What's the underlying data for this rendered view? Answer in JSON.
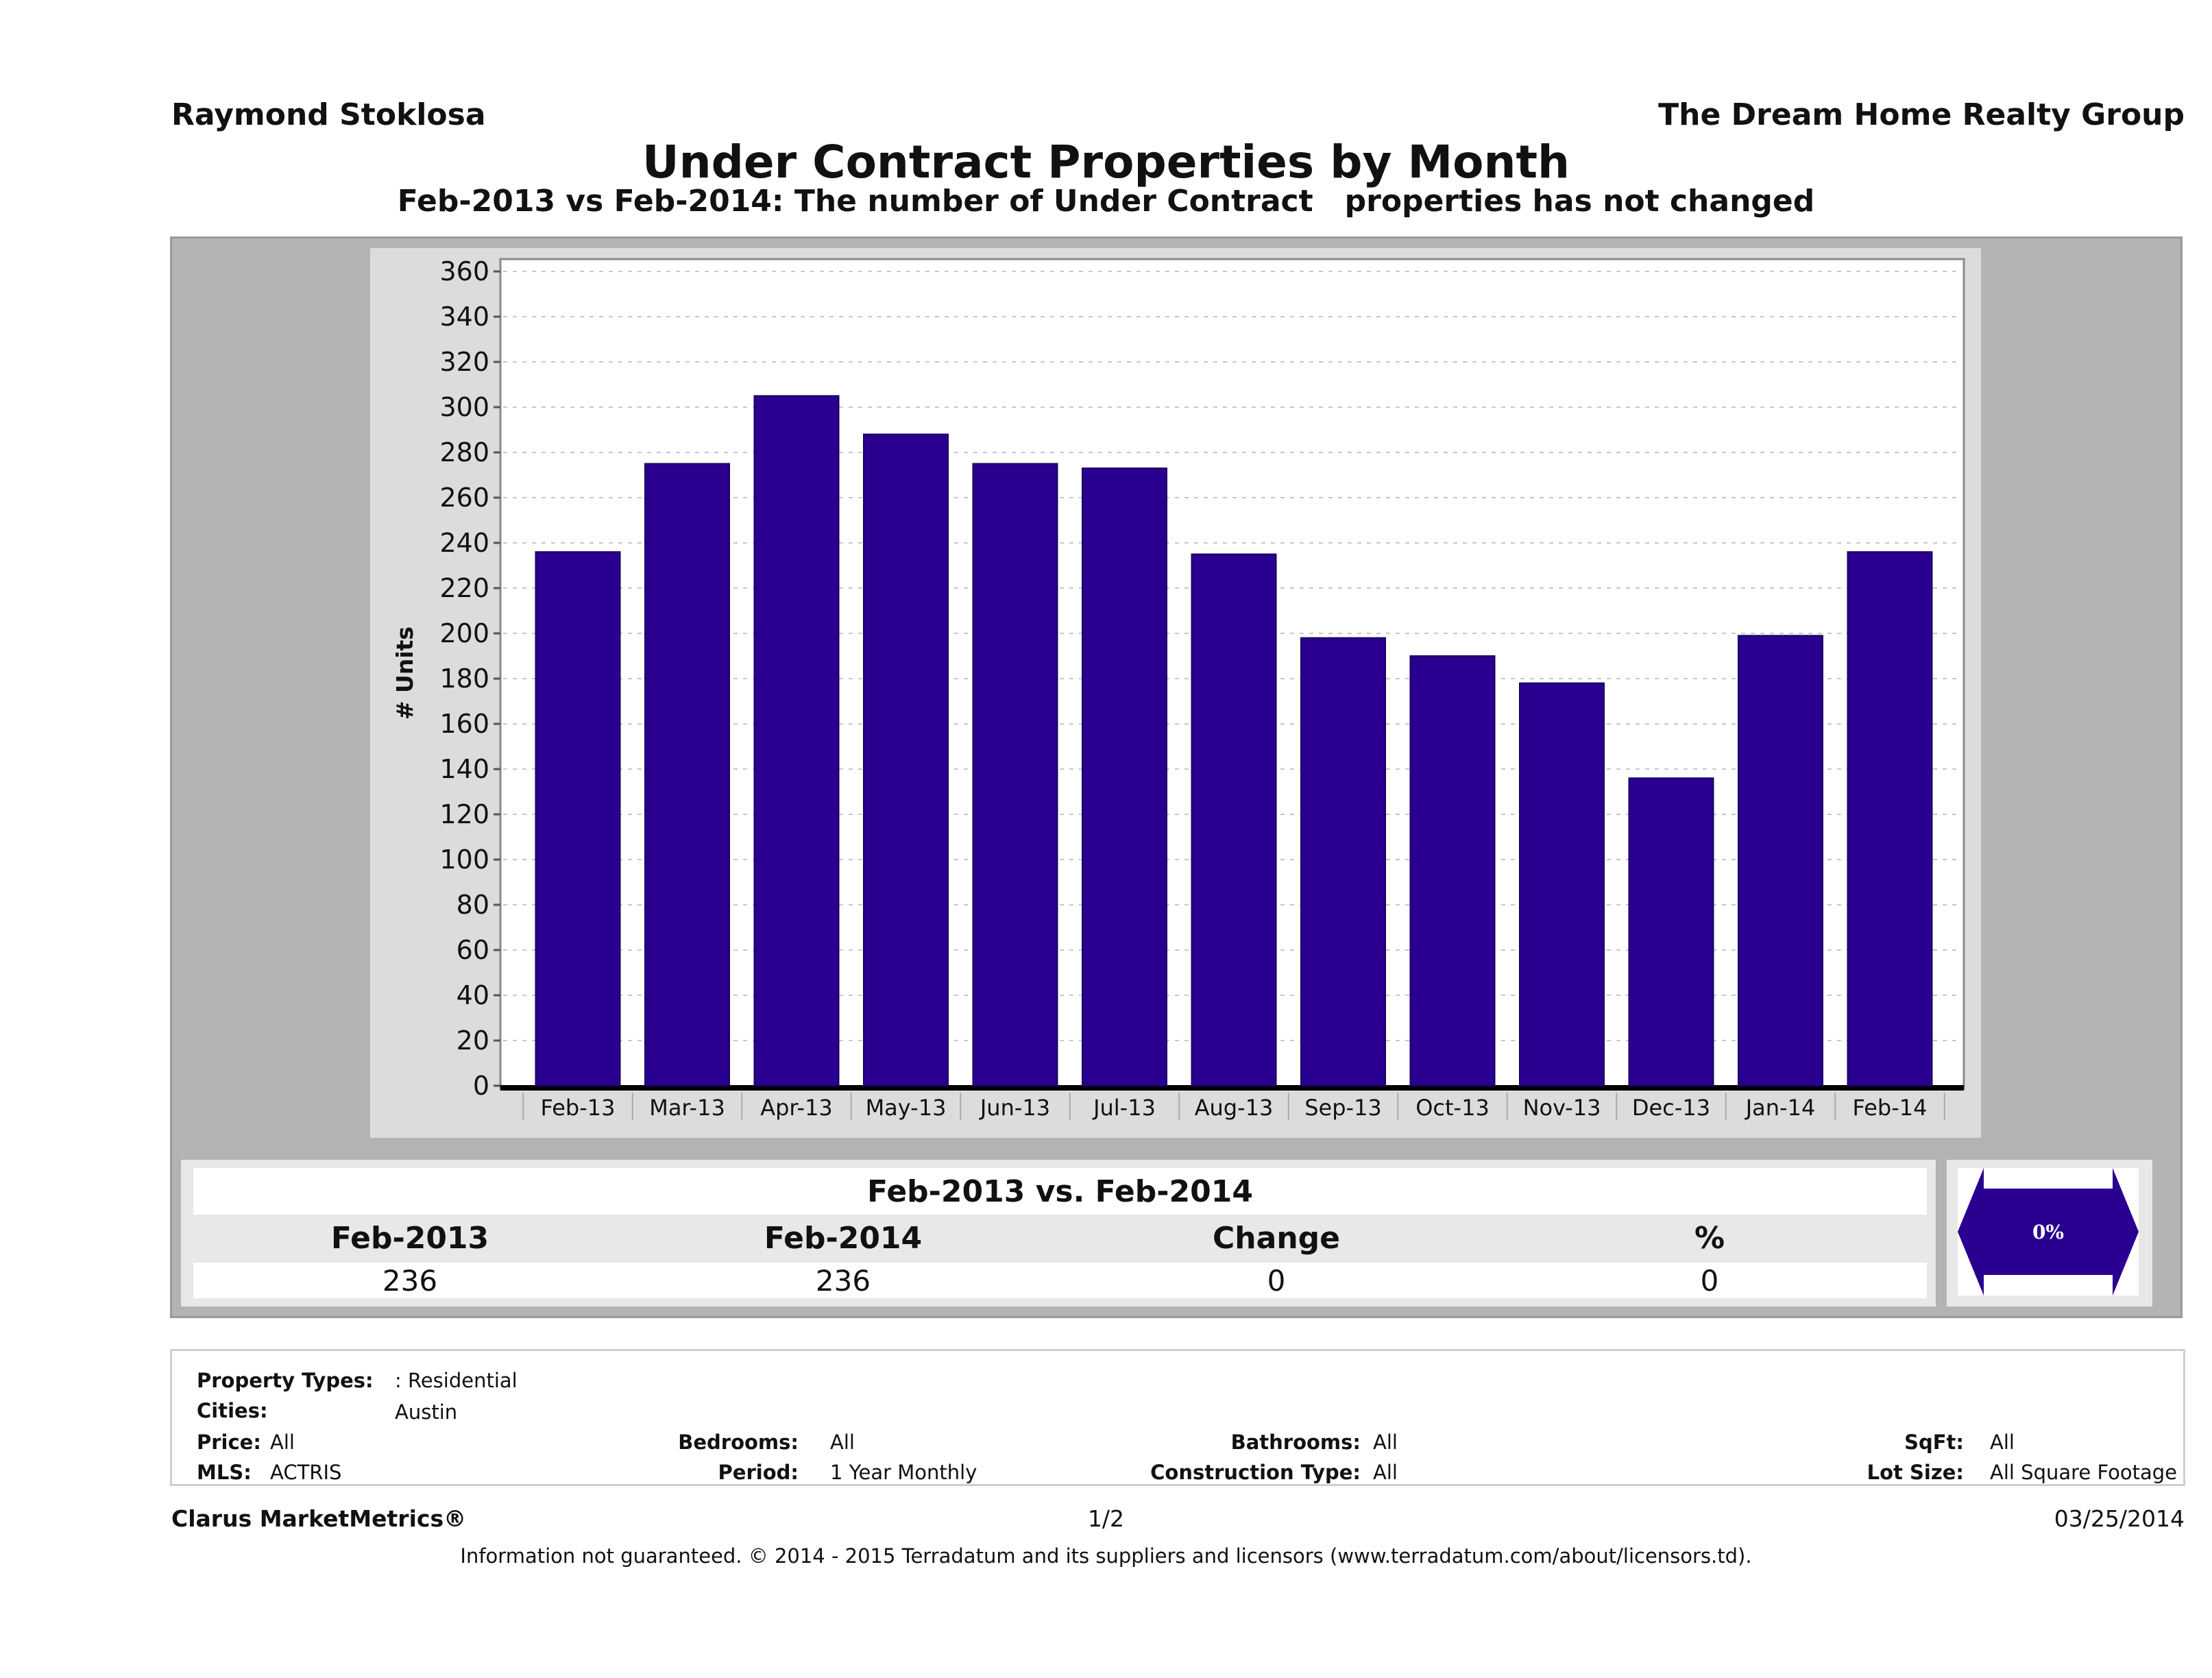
{
  "header": {
    "agent_name": "Raymond Stoklosa",
    "company_name": "The Dream Home Realty Group",
    "title": "Under Contract Properties by Month",
    "subtitle": "Feb-2013 vs Feb-2014: The number of Under Contract   properties has not changed"
  },
  "chart_data": {
    "type": "bar",
    "title": "Under Contract Properties by Month",
    "xlabel": "",
    "ylabel": "# Units",
    "categories": [
      "Feb-13",
      "Mar-13",
      "Apr-13",
      "May-13",
      "Jun-13",
      "Jul-13",
      "Aug-13",
      "Sep-13",
      "Oct-13",
      "Nov-13",
      "Dec-13",
      "Jan-14",
      "Feb-14"
    ],
    "values": [
      236,
      275,
      305,
      288,
      275,
      273,
      235,
      198,
      190,
      178,
      136,
      199,
      236
    ],
    "ylim": [
      0,
      360
    ],
    "yticks": [
      0,
      20,
      40,
      60,
      80,
      100,
      120,
      140,
      160,
      180,
      200,
      220,
      240,
      260,
      280,
      300,
      320,
      340,
      360
    ],
    "grid": true,
    "legend": "none",
    "bar_color": "#2a0090"
  },
  "comparison": {
    "title": "Feb-2013 vs. Feb-2014",
    "headers": [
      "Feb-2013",
      "Feb-2014",
      "Change",
      "%"
    ],
    "values": [
      "236",
      "236",
      "0",
      "0"
    ],
    "badge_text": "0%",
    "badge_color": "#2a0090"
  },
  "filters": {
    "property_types_label": "Property Types:",
    "property_types_value": ": Residential",
    "cities_label": "Cities:",
    "cities_value": "Austin",
    "price_label": "Price:",
    "price_value": "All",
    "bedrooms_label": "Bedrooms:",
    "bedrooms_value": "All",
    "bathrooms_label": "Bathrooms:",
    "bathrooms_value": "All",
    "sqft_label": "SqFt:",
    "sqft_value": "All",
    "mls_label": "MLS:",
    "mls_value": "ACTRIS",
    "period_label": "Period:",
    "period_value": "1 Year Monthly",
    "construction_label": "Construction Type:",
    "construction_value": "All",
    "lot_size_label": "Lot Size:",
    "lot_size_value": "All Square Footage"
  },
  "footer": {
    "brand": "Clarus MarketMetrics®",
    "page": "1/2",
    "date": "03/25/2014",
    "disclaimer": "Information not guaranteed. © 2014 - 2015 Terradatum and its suppliers and licensors (www.terradatum.com/about/licensors.td)."
  }
}
